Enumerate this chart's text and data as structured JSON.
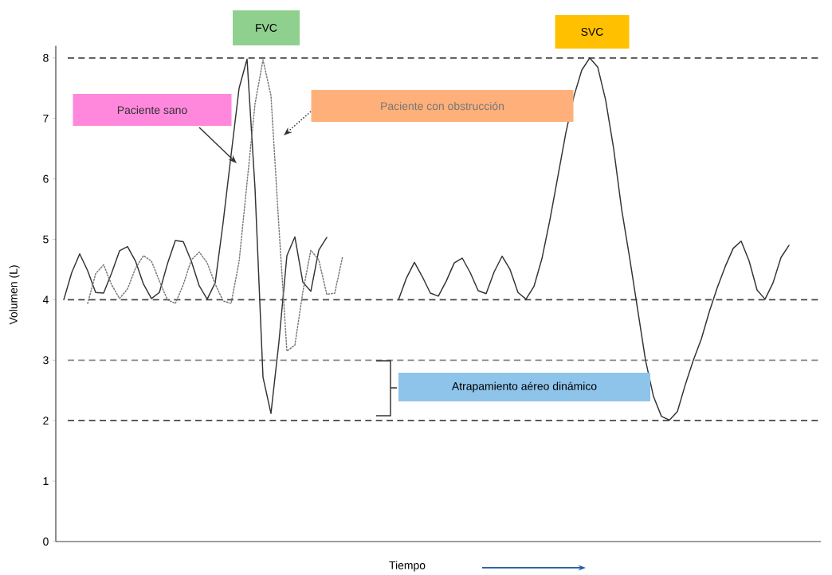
{
  "chart_data": {
    "type": "line",
    "xlabel": "Tiempo",
    "ylabel": "Volumen (L)",
    "categories": [
      null,
      null,
      null,
      null,
      null,
      null,
      null,
      null,
      null,
      null,
      null,
      null,
      null,
      null,
      null,
      null,
      null,
      null,
      null,
      null,
      null,
      null,
      null,
      null,
      null,
      null,
      null,
      null,
      null,
      null,
      null,
      null,
      null,
      null,
      null,
      null,
      null,
      null,
      null,
      null,
      null,
      null,
      null,
      null,
      null,
      null,
      null,
      null,
      null,
      null,
      null,
      null,
      null,
      null,
      null,
      null,
      null,
      null,
      null,
      null,
      null,
      null,
      null,
      null,
      null,
      null,
      null,
      null,
      null,
      null,
      null,
      null,
      null,
      null,
      null,
      null,
      null,
      null,
      null,
      null,
      null,
      null,
      null,
      null,
      null,
      null,
      null,
      null,
      null,
      null,
      null,
      null
    ],
    "ylim": [
      0,
      8.2
    ],
    "yticks": [
      0,
      1,
      2,
      3,
      4,
      5,
      6,
      7,
      8
    ],
    "series": [
      {
        "name": "Paciente sano",
        "color": "#333333",
        "line_style": "solid",
        "values": [
          4.0,
          4.45,
          4.76,
          4.48,
          4.12,
          4.11,
          4.44,
          4.81,
          4.88,
          4.64,
          4.26,
          4.02,
          4.12,
          4.59,
          4.98,
          4.96,
          4.64,
          4.23,
          4.01,
          4.28,
          5.28,
          6.4,
          7.5,
          7.98,
          5.84,
          2.72,
          2.12,
          3.3,
          4.73,
          5.04,
          4.29,
          4.14,
          4.82,
          5.03,
          null,
          null,
          null,
          null,
          null,
          null,
          null,
          null,
          null,
          null,
          null,
          null,
          null,
          null,
          null,
          null,
          null,
          null,
          null,
          null,
          null,
          null,
          null,
          null,
          null,
          null,
          null,
          null,
          null,
          null,
          null,
          null,
          null,
          null,
          null,
          null,
          null,
          null,
          null,
          null,
          null,
          null,
          null,
          null,
          null,
          null,
          null,
          null,
          null,
          null,
          null,
          null,
          null,
          null,
          null,
          null,
          null,
          null
        ]
      },
      {
        "name": "Paciente con obstrucción",
        "color": "#777777",
        "line_style": "dotted",
        "values": [
          null,
          null,
          null,
          3.94,
          4.43,
          4.58,
          4.25,
          4.02,
          4.18,
          4.52,
          4.73,
          4.64,
          4.31,
          4.0,
          3.94,
          4.25,
          4.66,
          4.79,
          4.61,
          4.26,
          3.98,
          3.94,
          4.63,
          5.94,
          7.24,
          7.97,
          7.38,
          5.2,
          3.15,
          3.25,
          4.13,
          4.82,
          4.66,
          4.09,
          4.11,
          4.72,
          null,
          null,
          null,
          null,
          null,
          null,
          null,
          null,
          null,
          null,
          null,
          null,
          null,
          null,
          null,
          null,
          null,
          null,
          null,
          null,
          null,
          null,
          null,
          null,
          null,
          null,
          null,
          null,
          null,
          null,
          null,
          null,
          null,
          null,
          null,
          null,
          null,
          null,
          null,
          null,
          null,
          null,
          null,
          null,
          null,
          null,
          null,
          null,
          null,
          null,
          null,
          null,
          null,
          null,
          null,
          null
        ]
      },
      {
        "color": "#333333",
        "line_style": "solid",
        "values": [
          null,
          null,
          null,
          null,
          null,
          null,
          null,
          null,
          null,
          null,
          null,
          null,
          null,
          null,
          null,
          null,
          null,
          null,
          null,
          null,
          null,
          null,
          null,
          null,
          null,
          null,
          null,
          null,
          null,
          null,
          null,
          null,
          null,
          null,
          null,
          null,
          null,
          null,
          null,
          null,
          null,
          null,
          4.0,
          4.36,
          4.62,
          4.38,
          4.11,
          4.06,
          4.31,
          4.61,
          4.69,
          4.45,
          4.15,
          4.1,
          4.46,
          4.72,
          4.5,
          4.12,
          4.01,
          4.22,
          4.68,
          5.32,
          6.04,
          6.76,
          7.36,
          7.8,
          8.0,
          7.85,
          7.3,
          6.5,
          5.5,
          4.7,
          3.85,
          3.0,
          2.4,
          2.07,
          2.01,
          2.15,
          2.6,
          3.0,
          3.35,
          3.8,
          4.2,
          4.55,
          4.85,
          4.97,
          4.64,
          4.16,
          4.01,
          4.28,
          4.7,
          4.9
        ]
      }
    ],
    "ref_lines": [
      {
        "axis": "y",
        "value": 8,
        "color": "#444444",
        "line_style": "dashed"
      },
      {
        "axis": "y",
        "value": 4,
        "color": "#444444",
        "line_style": "dashed"
      },
      {
        "axis": "y",
        "value": 3,
        "color": "#888888",
        "line_style": "dashed"
      },
      {
        "axis": "y",
        "value": 2,
        "color": "#444444",
        "line_style": "dashed"
      }
    ],
    "annotations": [
      "FVC",
      "SVC",
      "Atrapamiento aéreo dinámico"
    ]
  }
}
